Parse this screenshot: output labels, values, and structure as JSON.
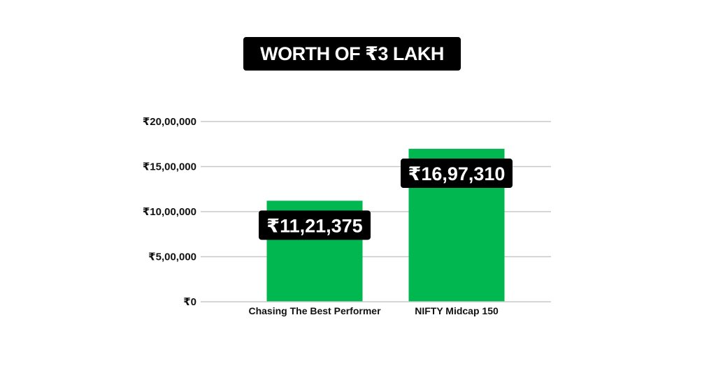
{
  "chart_data": {
    "type": "bar",
    "title": "WORTH OF ₹3 LAKH",
    "categories": [
      "Chasing The Best Performer",
      "NIFTY Midcap 150"
    ],
    "values": [
      1121375,
      1697310
    ],
    "value_labels": [
      "₹11,21,375",
      "₹16,97,310"
    ],
    "ylim": [
      0,
      2000000
    ],
    "yticks": [
      0,
      500000,
      1000000,
      1500000,
      2000000
    ],
    "ytick_labels": [
      "₹0",
      "₹5,00,000",
      "₹10,00,000",
      "₹15,00,000",
      "₹20,00,000"
    ],
    "grid": true,
    "legend": "none",
    "bar_color": "#00b84f",
    "label_box_color": "#000000"
  }
}
